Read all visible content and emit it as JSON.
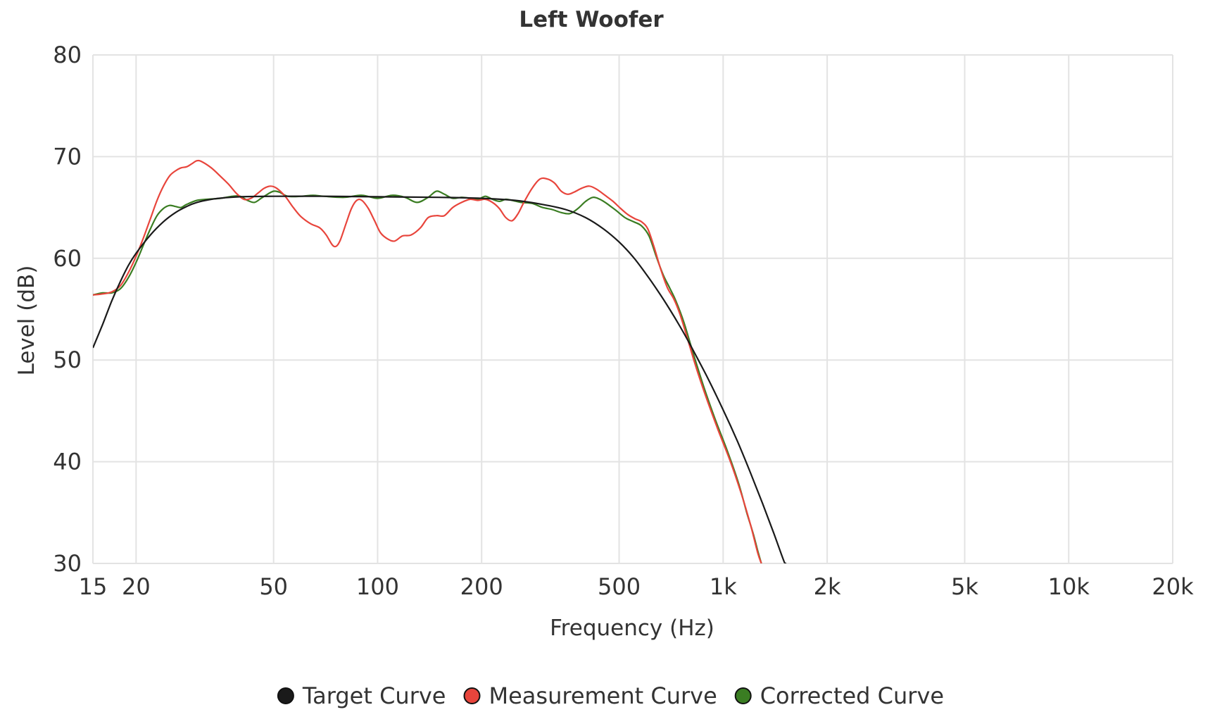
{
  "chart_data": {
    "type": "line",
    "title": "Left Woofer",
    "xlabel": "Frequency (Hz)",
    "ylabel": "Level (dB)",
    "x_scale": "log",
    "xlim": [
      15,
      20000
    ],
    "ylim": [
      30,
      80
    ],
    "grid": true,
    "legend_position": "bottom-center",
    "x_ticks": [
      {
        "value": 15,
        "label": "15"
      },
      {
        "value": 20,
        "label": "20"
      },
      {
        "value": 50,
        "label": "50"
      },
      {
        "value": 100,
        "label": "100"
      },
      {
        "value": 200,
        "label": "200"
      },
      {
        "value": 500,
        "label": "500"
      },
      {
        "value": 1000,
        "label": "1k"
      },
      {
        "value": 2000,
        "label": "2k"
      },
      {
        "value": 5000,
        "label": "5k"
      },
      {
        "value": 10000,
        "label": "10k"
      },
      {
        "value": 20000,
        "label": "20k"
      }
    ],
    "y_ticks": [
      {
        "value": 30,
        "label": "30"
      },
      {
        "value": 40,
        "label": "40"
      },
      {
        "value": 50,
        "label": "50"
      },
      {
        "value": 60,
        "label": "60"
      },
      {
        "value": 70,
        "label": "70"
      },
      {
        "value": 80,
        "label": "80"
      }
    ],
    "series": [
      {
        "name": "Target Curve",
        "color": "#1a1a1a",
        "points": [
          [
            15,
            51.2
          ],
          [
            16,
            53.5
          ],
          [
            17,
            55.8
          ],
          [
            18,
            57.7
          ],
          [
            19,
            59.3
          ],
          [
            20,
            60.5
          ],
          [
            22,
            62.3
          ],
          [
            24,
            63.6
          ],
          [
            26,
            64.5
          ],
          [
            28,
            65.1
          ],
          [
            30,
            65.5
          ],
          [
            33,
            65.8
          ],
          [
            36,
            65.95
          ],
          [
            40,
            66.05
          ],
          [
            50,
            66.1
          ],
          [
            70,
            66.1
          ],
          [
            100,
            66.05
          ],
          [
            150,
            66.0
          ],
          [
            200,
            65.9
          ],
          [
            250,
            65.7
          ],
          [
            300,
            65.3
          ],
          [
            350,
            64.8
          ],
          [
            400,
            64.0
          ],
          [
            450,
            62.9
          ],
          [
            500,
            61.6
          ],
          [
            550,
            60.1
          ],
          [
            600,
            58.4
          ],
          [
            650,
            56.7
          ],
          [
            700,
            55.0
          ],
          [
            750,
            53.3
          ],
          [
            800,
            51.6
          ],
          [
            900,
            48.3
          ],
          [
            1000,
            45.1
          ],
          [
            1100,
            42.0
          ],
          [
            1200,
            38.9
          ],
          [
            1300,
            35.9
          ],
          [
            1400,
            33.0
          ],
          [
            1500,
            30.2
          ],
          [
            1520,
            30.0
          ]
        ]
      },
      {
        "name": "Measurement Curve",
        "color": "#e8453c",
        "points": [
          [
            15,
            56.4
          ],
          [
            16,
            56.5
          ],
          [
            17,
            56.7
          ],
          [
            18,
            57.3
          ],
          [
            19,
            58.6
          ],
          [
            20,
            60.2
          ],
          [
            21,
            62.0
          ],
          [
            22,
            63.9
          ],
          [
            23,
            65.7
          ],
          [
            24,
            67.1
          ],
          [
            25,
            68.1
          ],
          [
            26,
            68.6
          ],
          [
            27,
            68.9
          ],
          [
            28,
            69.0
          ],
          [
            29,
            69.3
          ],
          [
            30,
            69.6
          ],
          [
            31,
            69.5
          ],
          [
            33,
            68.9
          ],
          [
            35,
            68.1
          ],
          [
            37,
            67.3
          ],
          [
            39,
            66.4
          ],
          [
            41,
            65.8
          ],
          [
            43,
            65.9
          ],
          [
            45,
            66.4
          ],
          [
            47,
            66.9
          ],
          [
            49,
            67.1
          ],
          [
            51,
            66.9
          ],
          [
            54,
            66.1
          ],
          [
            57,
            65.0
          ],
          [
            60,
            64.1
          ],
          [
            64,
            63.4
          ],
          [
            68,
            63.0
          ],
          [
            71,
            62.3
          ],
          [
            74,
            61.3
          ],
          [
            76,
            61.2
          ],
          [
            78,
            61.8
          ],
          [
            81,
            63.4
          ],
          [
            84,
            64.9
          ],
          [
            87,
            65.7
          ],
          [
            90,
            65.7
          ],
          [
            94,
            64.9
          ],
          [
            98,
            63.7
          ],
          [
            102,
            62.5
          ],
          [
            107,
            61.9
          ],
          [
            112,
            61.7
          ],
          [
            118,
            62.2
          ],
          [
            125,
            62.3
          ],
          [
            133,
            63.0
          ],
          [
            140,
            64.0
          ],
          [
            148,
            64.2
          ],
          [
            156,
            64.2
          ],
          [
            165,
            65.0
          ],
          [
            175,
            65.5
          ],
          [
            185,
            65.8
          ],
          [
            195,
            65.7
          ],
          [
            205,
            65.8
          ],
          [
            215,
            65.5
          ],
          [
            225,
            64.9
          ],
          [
            235,
            64.0
          ],
          [
            245,
            63.7
          ],
          [
            255,
            64.4
          ],
          [
            265,
            65.5
          ],
          [
            280,
            66.9
          ],
          [
            295,
            67.8
          ],
          [
            310,
            67.8
          ],
          [
            325,
            67.4
          ],
          [
            340,
            66.6
          ],
          [
            355,
            66.3
          ],
          [
            370,
            66.5
          ],
          [
            390,
            66.9
          ],
          [
            410,
            67.1
          ],
          [
            430,
            66.8
          ],
          [
            455,
            66.2
          ],
          [
            480,
            65.6
          ],
          [
            505,
            64.9
          ],
          [
            530,
            64.3
          ],
          [
            555,
            63.9
          ],
          [
            580,
            63.6
          ],
          [
            605,
            62.9
          ],
          [
            630,
            61.2
          ],
          [
            660,
            58.9
          ],
          [
            690,
            57.1
          ],
          [
            720,
            56.0
          ],
          [
            750,
            54.5
          ],
          [
            790,
            52.0
          ],
          [
            840,
            49.0
          ],
          [
            900,
            46.0
          ],
          [
            970,
            43.0
          ],
          [
            1050,
            40.0
          ],
          [
            1130,
            36.8
          ],
          [
            1200,
            33.8
          ],
          [
            1260,
            31.0
          ],
          [
            1290,
            30.0
          ]
        ]
      },
      {
        "name": "Corrected Curve",
        "color": "#3a7d22",
        "points": [
          [
            15,
            56.4
          ],
          [
            16,
            56.6
          ],
          [
            17,
            56.6
          ],
          [
            18,
            57.0
          ],
          [
            19,
            58.1
          ],
          [
            20,
            59.6
          ],
          [
            21,
            61.3
          ],
          [
            22,
            62.9
          ],
          [
            23,
            64.2
          ],
          [
            24,
            64.9
          ],
          [
            25,
            65.2
          ],
          [
            26,
            65.1
          ],
          [
            27,
            65.0
          ],
          [
            28,
            65.3
          ],
          [
            30,
            65.7
          ],
          [
            32,
            65.8
          ],
          [
            35,
            65.9
          ],
          [
            38,
            66.1
          ],
          [
            40,
            66.1
          ],
          [
            42,
            65.7
          ],
          [
            44,
            65.5
          ],
          [
            46,
            65.9
          ],
          [
            48,
            66.3
          ],
          [
            50,
            66.6
          ],
          [
            52,
            66.5
          ],
          [
            55,
            66.1
          ],
          [
            60,
            66.1
          ],
          [
            65,
            66.2
          ],
          [
            70,
            66.1
          ],
          [
            80,
            66.0
          ],
          [
            90,
            66.2
          ],
          [
            100,
            65.9
          ],
          [
            110,
            66.2
          ],
          [
            120,
            66.0
          ],
          [
            130,
            65.5
          ],
          [
            140,
            66.0
          ],
          [
            148,
            66.6
          ],
          [
            156,
            66.3
          ],
          [
            165,
            65.9
          ],
          [
            175,
            66.0
          ],
          [
            185,
            65.9
          ],
          [
            195,
            65.8
          ],
          [
            205,
            66.1
          ],
          [
            215,
            65.8
          ],
          [
            225,
            65.6
          ],
          [
            235,
            65.8
          ],
          [
            245,
            65.7
          ],
          [
            260,
            65.5
          ],
          [
            280,
            65.4
          ],
          [
            300,
            65.0
          ],
          [
            320,
            64.8
          ],
          [
            340,
            64.5
          ],
          [
            360,
            64.4
          ],
          [
            380,
            64.9
          ],
          [
            400,
            65.6
          ],
          [
            420,
            66.0
          ],
          [
            440,
            65.8
          ],
          [
            460,
            65.4
          ],
          [
            490,
            64.7
          ],
          [
            520,
            64.0
          ],
          [
            550,
            63.6
          ],
          [
            580,
            63.2
          ],
          [
            610,
            62.2
          ],
          [
            640,
            60.2
          ],
          [
            670,
            58.4
          ],
          [
            700,
            57.1
          ],
          [
            730,
            55.8
          ],
          [
            770,
            53.7
          ],
          [
            820,
            50.6
          ],
          [
            880,
            47.3
          ],
          [
            950,
            44.1
          ],
          [
            1030,
            41.0
          ],
          [
            1110,
            37.8
          ],
          [
            1170,
            35.0
          ],
          [
            1220,
            33.0
          ],
          [
            1260,
            31.2
          ],
          [
            1290,
            30.0
          ]
        ]
      }
    ]
  }
}
